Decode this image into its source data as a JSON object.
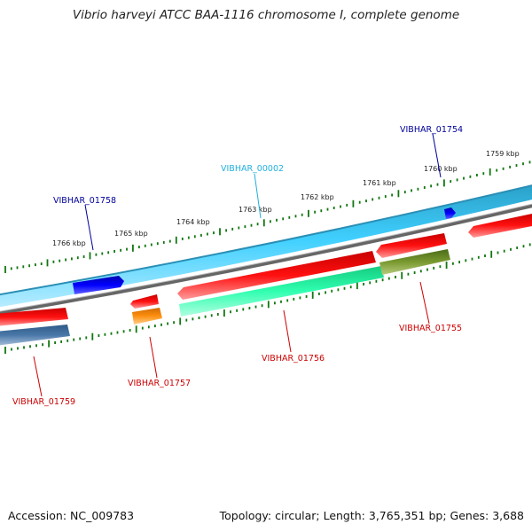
{
  "title": "Vibrio harveyi ATCC BAA-1116 chromosome I, complete genome",
  "footer": {
    "accession": "Accession: NC_009783",
    "summary": "Topology: circular; Length: 3,765,351 bp; Genes: 3,688"
  },
  "scale_labels": [
    "1759 kbp",
    "1760 kbp",
    "1761 kbp",
    "1762 kbp",
    "1763 kbp",
    "1764 kbp",
    "1765 kbp",
    "1766 kbp"
  ],
  "gene_labels": {
    "vibhar_01754": "VIBHAR_01754",
    "vibhar_00002": "VIBHAR_00002",
    "vibhar_01758": "VIBHAR_01758",
    "vibhar_01755": "VIBHAR_01755",
    "vibhar_01756": "VIBHAR_01756",
    "vibhar_01757": "VIBHAR_01757",
    "vibhar_01759": "VIBHAR_01759"
  },
  "colors": {
    "forward_cds": "#33c8f0",
    "forward_gene": "#0000ee",
    "reverse_cds": "#ee0000",
    "reverse_misc": "#22ee99",
    "reverse_dark": "#6b8e23",
    "reverse_orange": "#ff8800",
    "reverse_steel": "#4a78a8",
    "backbone": "#777777",
    "tick": "#117711",
    "label_forward": "#000099",
    "label_forward_light": "#22b0dd",
    "label_reverse": "#cc0000"
  }
}
